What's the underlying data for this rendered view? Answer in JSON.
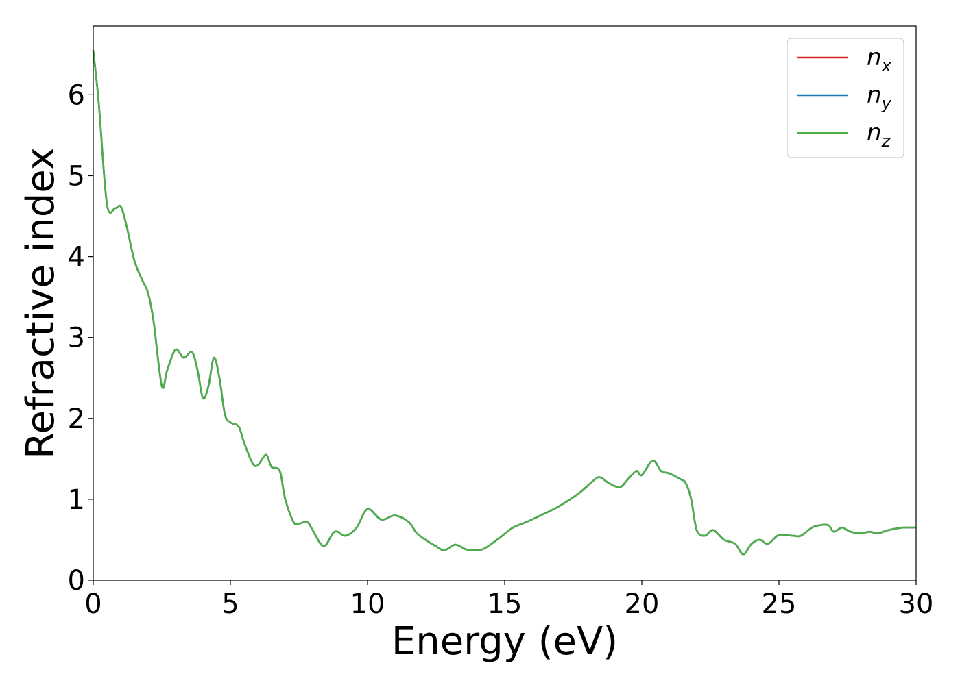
{
  "chart_data": {
    "type": "line",
    "xlabel": "Energy (eV)",
    "ylabel": "Refractive index",
    "xlim": [
      0,
      30
    ],
    "ylim": [
      0,
      6.85
    ],
    "xticks": [
      0,
      5,
      10,
      15,
      20,
      25,
      30
    ],
    "yticks": [
      0,
      1,
      2,
      3,
      4,
      5,
      6
    ],
    "grid": false,
    "legend_position": "top-right",
    "x": [
      0,
      0.2,
      0.5,
      0.8,
      1.0,
      1.2,
      1.5,
      1.8,
      2.0,
      2.2,
      2.5,
      2.7,
      3.0,
      3.3,
      3.6,
      3.8,
      4.0,
      4.2,
      4.4,
      4.6,
      4.8,
      5.0,
      5.3,
      5.5,
      5.8,
      6.0,
      6.3,
      6.5,
      6.8,
      7.0,
      7.3,
      7.5,
      7.8,
      8.0,
      8.4,
      8.8,
      9.2,
      9.6,
      10.0,
      10.5,
      11.0,
      11.5,
      11.8,
      12.2,
      12.5,
      12.8,
      13.2,
      13.6,
      14.0,
      14.3,
      14.8,
      15.3,
      15.8,
      16.3,
      16.8,
      17.3,
      17.8,
      18.3,
      18.5,
      18.8,
      19.2,
      19.5,
      19.8,
      20.0,
      20.4,
      20.7,
      21.0,
      21.4,
      21.6,
      21.8,
      22.0,
      22.3,
      22.6,
      23.0,
      23.4,
      23.7,
      24.0,
      24.3,
      24.6,
      25.0,
      25.5,
      25.8,
      26.2,
      26.5,
      26.8,
      27.0,
      27.3,
      27.6,
      28.0,
      28.3,
      28.6,
      29.0,
      29.5,
      30.0
    ],
    "series": [
      {
        "name": "n_x",
        "label": "n",
        "subscript": "x",
        "color": "#d62728",
        "values": [
          6.55,
          5.9,
          4.65,
          4.6,
          4.62,
          4.4,
          3.95,
          3.7,
          3.55,
          3.2,
          2.4,
          2.6,
          2.85,
          2.75,
          2.82,
          2.6,
          2.25,
          2.4,
          2.75,
          2.5,
          2.05,
          1.95,
          1.9,
          1.7,
          1.45,
          1.42,
          1.55,
          1.4,
          1.35,
          1.0,
          0.72,
          0.7,
          0.72,
          0.62,
          0.42,
          0.6,
          0.55,
          0.65,
          0.88,
          0.75,
          0.8,
          0.72,
          0.58,
          0.48,
          0.42,
          0.37,
          0.44,
          0.38,
          0.37,
          0.4,
          0.52,
          0.65,
          0.72,
          0.8,
          0.88,
          0.98,
          1.1,
          1.25,
          1.27,
          1.2,
          1.15,
          1.25,
          1.35,
          1.3,
          1.48,
          1.35,
          1.32,
          1.25,
          1.2,
          1.0,
          0.62,
          0.55,
          0.62,
          0.5,
          0.45,
          0.32,
          0.45,
          0.5,
          0.45,
          0.56,
          0.55,
          0.55,
          0.65,
          0.68,
          0.68,
          0.6,
          0.65,
          0.6,
          0.58,
          0.6,
          0.58,
          0.62,
          0.65,
          0.65
        ]
      },
      {
        "name": "n_y",
        "label": "n",
        "subscript": "y",
        "color": "#1f77b4",
        "values": [
          6.55,
          5.9,
          4.65,
          4.6,
          4.62,
          4.4,
          3.95,
          3.7,
          3.55,
          3.2,
          2.4,
          2.6,
          2.85,
          2.75,
          2.82,
          2.6,
          2.25,
          2.4,
          2.75,
          2.5,
          2.05,
          1.95,
          1.9,
          1.7,
          1.45,
          1.42,
          1.55,
          1.4,
          1.35,
          1.0,
          0.72,
          0.7,
          0.72,
          0.62,
          0.42,
          0.6,
          0.55,
          0.65,
          0.88,
          0.75,
          0.8,
          0.72,
          0.58,
          0.48,
          0.42,
          0.37,
          0.44,
          0.38,
          0.37,
          0.4,
          0.52,
          0.65,
          0.72,
          0.8,
          0.88,
          0.98,
          1.1,
          1.25,
          1.27,
          1.2,
          1.15,
          1.25,
          1.35,
          1.3,
          1.48,
          1.35,
          1.32,
          1.25,
          1.2,
          1.0,
          0.62,
          0.55,
          0.62,
          0.5,
          0.45,
          0.32,
          0.45,
          0.5,
          0.45,
          0.56,
          0.55,
          0.55,
          0.65,
          0.68,
          0.68,
          0.6,
          0.65,
          0.6,
          0.58,
          0.6,
          0.58,
          0.62,
          0.65,
          0.65
        ]
      },
      {
        "name": "n_z",
        "label": "n",
        "subscript": "z",
        "color": "#4daf4a",
        "values": [
          6.55,
          5.9,
          4.65,
          4.6,
          4.62,
          4.4,
          3.95,
          3.7,
          3.55,
          3.2,
          2.4,
          2.6,
          2.85,
          2.75,
          2.82,
          2.6,
          2.25,
          2.4,
          2.75,
          2.5,
          2.05,
          1.95,
          1.9,
          1.7,
          1.45,
          1.42,
          1.55,
          1.4,
          1.35,
          1.0,
          0.72,
          0.7,
          0.72,
          0.62,
          0.42,
          0.6,
          0.55,
          0.65,
          0.88,
          0.75,
          0.8,
          0.72,
          0.58,
          0.48,
          0.42,
          0.37,
          0.44,
          0.38,
          0.37,
          0.4,
          0.52,
          0.65,
          0.72,
          0.8,
          0.88,
          0.98,
          1.1,
          1.25,
          1.27,
          1.2,
          1.15,
          1.25,
          1.35,
          1.3,
          1.48,
          1.35,
          1.32,
          1.25,
          1.2,
          1.0,
          0.62,
          0.55,
          0.62,
          0.5,
          0.45,
          0.32,
          0.45,
          0.5,
          0.45,
          0.56,
          0.55,
          0.55,
          0.65,
          0.68,
          0.68,
          0.6,
          0.65,
          0.6,
          0.58,
          0.6,
          0.58,
          0.62,
          0.65,
          0.65
        ]
      }
    ]
  }
}
